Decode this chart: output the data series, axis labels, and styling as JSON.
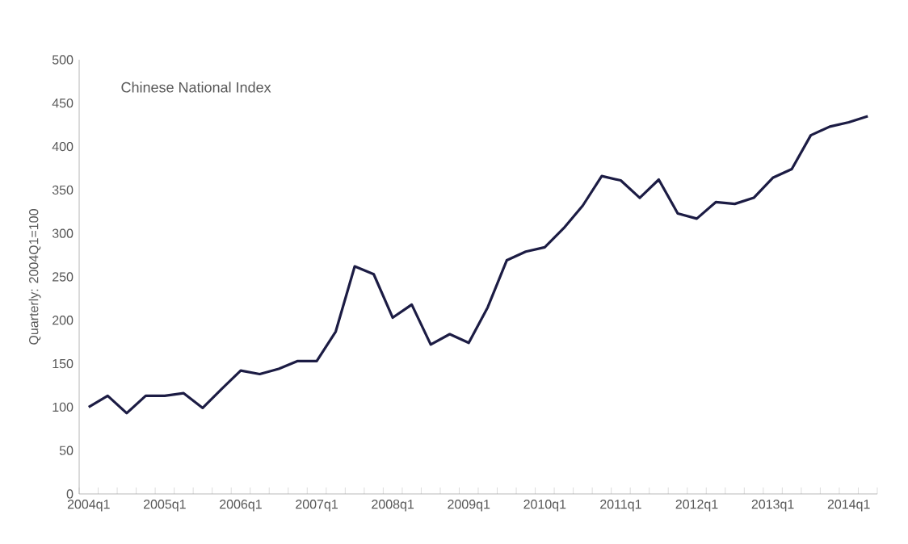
{
  "chart_data": {
    "type": "line",
    "title": "Chinese National Index",
    "ylabel": "Quarterly: 2004Q1=100",
    "categories": [
      "2004q1",
      null,
      null,
      null,
      "2005q1",
      null,
      null,
      null,
      "2006q1",
      null,
      null,
      null,
      "2007q1",
      null,
      null,
      null,
      "2008q1",
      null,
      null,
      null,
      "2009q1",
      null,
      null,
      null,
      "2010q1",
      null,
      null,
      null,
      "2011q1",
      null,
      null,
      null,
      "2012q1",
      null,
      null,
      null,
      "2013q1",
      null,
      null,
      null,
      "2014q1",
      null
    ],
    "series": [
      {
        "color": "#1c1c44",
        "values": [
          100,
          113,
          93,
          113,
          113,
          116,
          99,
          121,
          142,
          138,
          144,
          153,
          153,
          187,
          262,
          253,
          203,
          218,
          172,
          184,
          174,
          215,
          269,
          279,
          284,
          306,
          332,
          366,
          361,
          341,
          362,
          323,
          317,
          336,
          334,
          341,
          364,
          374,
          413,
          423,
          428,
          435
        ]
      }
    ],
    "ylim": [
      0,
      500
    ],
    "yticks": [
      0,
      50,
      100,
      150,
      200,
      250,
      300,
      350,
      400,
      450,
      500
    ],
    "grid": false,
    "marker": "none",
    "line_style": "solid"
  }
}
